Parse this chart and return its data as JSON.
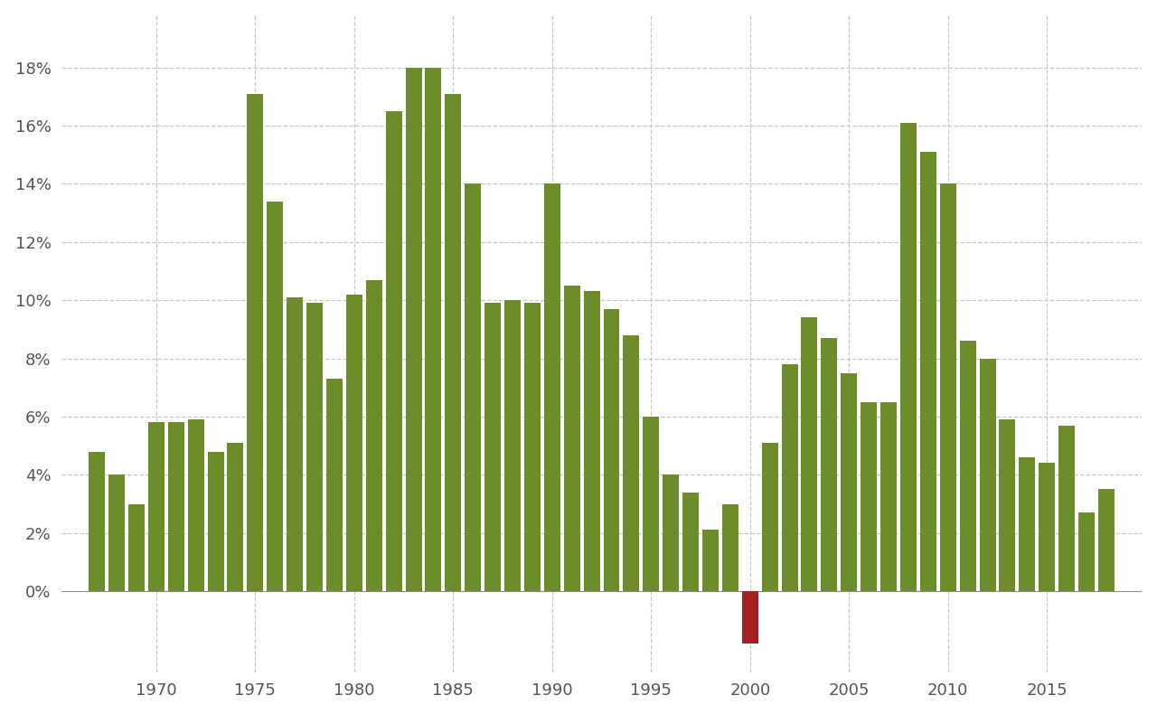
{
  "years": [
    1967,
    1968,
    1969,
    1970,
    1971,
    1972,
    1973,
    1974,
    1975,
    1976,
    1977,
    1978,
    1979,
    1980,
    1981,
    1982,
    1983,
    1984,
    1985,
    1986,
    1987,
    1988,
    1989,
    1990,
    1991,
    1992,
    1993,
    1994,
    1995,
    1996,
    1997,
    1998,
    1999,
    2000,
    2001,
    2002,
    2003,
    2004,
    2005,
    2006,
    2007,
    2008,
    2009,
    2010,
    2011,
    2012,
    2013,
    2014,
    2015,
    2016,
    2017,
    2018
  ],
  "values": [
    4.8,
    4.0,
    3.0,
    5.8,
    5.8,
    5.9,
    4.8,
    5.1,
    17.1,
    13.4,
    10.1,
    9.9,
    7.3,
    10.2,
    10.7,
    16.5,
    18.0,
    18.0,
    17.1,
    14.0,
    9.9,
    10.0,
    9.9,
    14.0,
    10.5,
    10.3,
    9.7,
    8.8,
    6.0,
    4.0,
    3.4,
    2.1,
    3.0,
    -1.8,
    5.1,
    7.8,
    9.4,
    8.7,
    7.5,
    6.5,
    6.5,
    16.1,
    15.1,
    14.0,
    8.6,
    8.0,
    5.9,
    4.6,
    4.4,
    5.7,
    2.7,
    3.5
  ],
  "bar_color_positive": "#6d8c2a",
  "bar_color_negative": "#a52020",
  "background_color": "#ffffff",
  "grid_color": "#c8c8c8",
  "ytick_labels": [
    "0%",
    "2%",
    "4%",
    "6%",
    "8%",
    "10%",
    "12%",
    "14%",
    "16%",
    "18%"
  ],
  "ytick_values": [
    0,
    2,
    4,
    6,
    8,
    10,
    12,
    14,
    16,
    18
  ],
  "ylim": [
    -2.8,
    19.8
  ],
  "xtick_years": [
    1970,
    1975,
    1980,
    1985,
    1990,
    1995,
    2000,
    2005,
    2010,
    2015
  ],
  "bar_width": 0.82
}
